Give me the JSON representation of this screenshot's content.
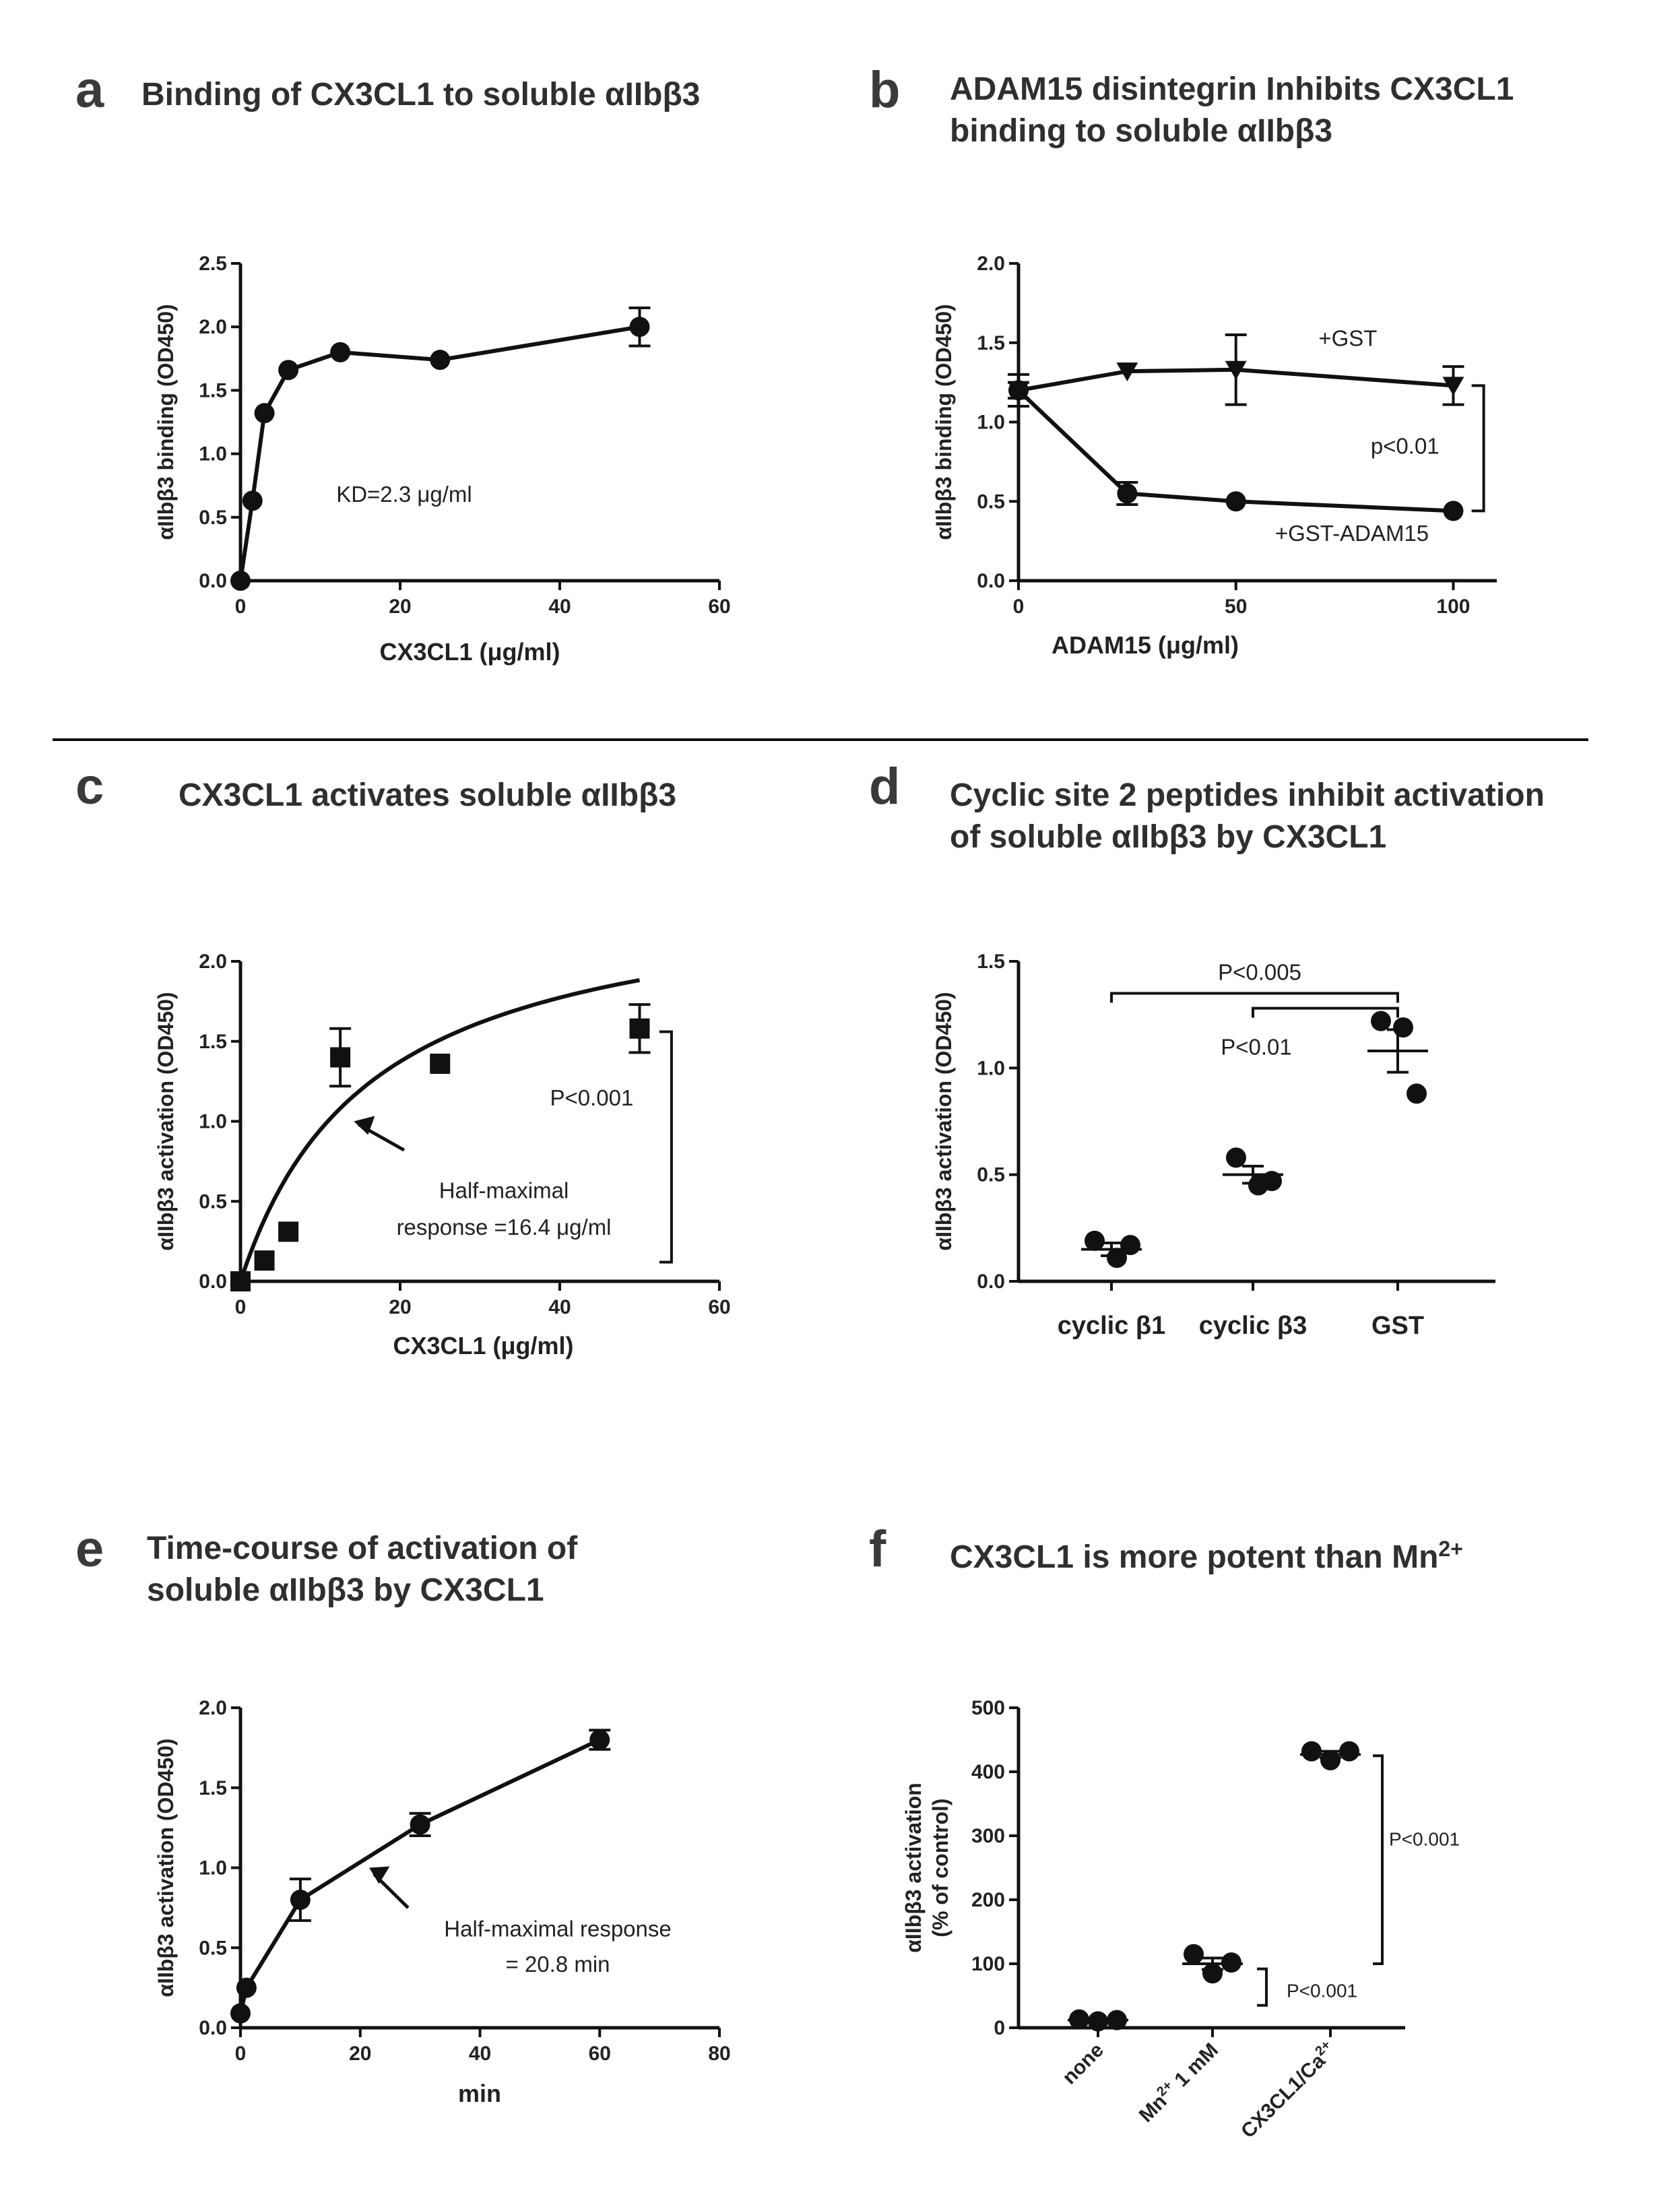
{
  "panels": {
    "a": {
      "letter": "a",
      "title": [
        "Binding of CX3CL1 to soluble αIIbβ3"
      ]
    },
    "b": {
      "letter": "b",
      "title": [
        "ADAM15 disintegrin Inhibits CX3CL1",
        "binding to soluble αIIbβ3"
      ]
    },
    "c": {
      "letter": "c",
      "title": [
        "CX3CL1 activates soluble αIIbβ3"
      ]
    },
    "d": {
      "letter": "d",
      "title": [
        "Cyclic site 2 peptides inhibit activation",
        "of soluble αIIbβ3 by CX3CL1"
      ]
    },
    "e": {
      "letter": "e",
      "title": [
        "Time-course of activation of",
        "soluble αIIbβ3  by CX3CL1"
      ]
    },
    "f": {
      "letter": "f",
      "title": [
        "CX3CL1 is more potent than Mn"
      ],
      "title_sup": "2+"
    }
  },
  "chart_data": [
    {
      "id": "a",
      "type": "line",
      "xlabel": "CX3CL1  (μg/ml)",
      "ylabel": "αIIbβ3 binding (OD450)",
      "xlim": [
        0,
        60
      ],
      "ylim": [
        0,
        2.5
      ],
      "xticks": [
        0,
        20,
        40,
        60
      ],
      "yticks": [
        "0.0",
        "0.5",
        "1.0",
        "1.5",
        "2.0",
        "2.5"
      ],
      "series": [
        {
          "name": "CX3CL1",
          "marker": "circle",
          "x": [
            0,
            1.5,
            3,
            6,
            12.5,
            25,
            50
          ],
          "y": [
            0,
            0.63,
            1.32,
            1.66,
            1.8,
            1.74,
            2.0
          ],
          "err": [
            0,
            0,
            0,
            0,
            0,
            0,
            0.15
          ]
        }
      ],
      "annotations": [
        {
          "text": "KD=2.3 μg/ml",
          "x": 12,
          "y": 0.62
        }
      ]
    },
    {
      "id": "b",
      "type": "line",
      "xlabel": "ADAM15 (μg/ml)",
      "ylabel": "αIIbβ3 binding (OD450)",
      "xlim": [
        0,
        110
      ],
      "ylim": [
        0,
        2.0
      ],
      "xticks": [
        0,
        50,
        100
      ],
      "yticks": [
        "0.0",
        "0.5",
        "1.0",
        "1.5",
        "2.0"
      ],
      "series": [
        {
          "name": "+GST",
          "marker": "triangle-down",
          "x": [
            0,
            25,
            50,
            100
          ],
          "y": [
            1.2,
            1.32,
            1.33,
            1.23
          ],
          "err": [
            0.1,
            0,
            0.22,
            0.12
          ]
        },
        {
          "name": "+GST-ADAM15",
          "marker": "circle",
          "x": [
            0,
            25,
            50,
            100
          ],
          "y": [
            1.2,
            0.55,
            0.5,
            0.44
          ],
          "err": [
            0.05,
            0.07,
            0,
            0
          ]
        }
      ],
      "annotations": [
        {
          "text": "+GST",
          "x": 69,
          "y": 1.48
        },
        {
          "text": "p<0.01",
          "x": 81,
          "y": 0.8
        },
        {
          "text": "+GST-ADAM15",
          "x": 59,
          "y": 0.25
        }
      ]
    },
    {
      "id": "c",
      "type": "scatter",
      "xlabel": "CX3CL1 (μg/ml)",
      "ylabel": "αIIbβ3 activation (OD450)",
      "xlim": [
        0,
        60
      ],
      "ylim": [
        0,
        2.0
      ],
      "xticks": [
        0,
        20,
        40,
        60
      ],
      "yticks": [
        "0.0",
        "0.5",
        "1.0",
        "1.5",
        "2.0"
      ],
      "series": [
        {
          "name": "CX3CL1",
          "marker": "square",
          "x": [
            0,
            3,
            6,
            12.5,
            25,
            50
          ],
          "y": [
            0,
            0.13,
            0.31,
            1.4,
            1.36,
            1.58
          ],
          "err": [
            0,
            0,
            0,
            0.18,
            0,
            0.15
          ]
        }
      ],
      "fit": {
        "type": "hyperbola",
        "ymax": 2.5,
        "ec50": 16.4
      },
      "annotations": [
        {
          "text": "P<0.001",
          "x": 44,
          "y": 1.1
        },
        {
          "text": "Half-maximal",
          "x": 33,
          "y": 0.52
        },
        {
          "text": "response =16.4 μg/ml",
          "x": 33,
          "y": 0.29
        }
      ]
    },
    {
      "id": "d",
      "type": "scatter",
      "xlabel": "",
      "ylabel": "αIIbβ3 activation (OD450)",
      "categories": [
        "cyclic β1",
        "cyclic β3",
        "GST"
      ],
      "ylim": [
        0,
        1.5
      ],
      "yticks": [
        "0.0",
        "0.5",
        "1.0",
        "1.5"
      ],
      "series": [
        {
          "name": "cyclic β1",
          "values": [
            0.19,
            0.11,
            0.17
          ],
          "mean": 0.15,
          "sem": 0.03
        },
        {
          "name": "cyclic β3",
          "values": [
            0.58,
            0.45,
            0.47
          ],
          "mean": 0.5,
          "sem": 0.04
        },
        {
          "name": "GST",
          "values": [
            1.22,
            1.19,
            0.88
          ],
          "mean": 1.08,
          "sem": 0.1
        }
      ],
      "annotations": [
        {
          "text": "P<0.005",
          "between": [
            "cyclic β1",
            "GST"
          ]
        },
        {
          "text": "P<0.01",
          "between": [
            "cyclic β3",
            "GST"
          ]
        }
      ]
    },
    {
      "id": "e",
      "type": "line",
      "xlabel": "min",
      "ylabel": "αIIbβ3 activation (OD450)",
      "xlim": [
        0,
        80
      ],
      "ylim": [
        0,
        2.0
      ],
      "xticks": [
        0,
        20,
        40,
        60,
        80
      ],
      "yticks": [
        "0.0",
        "0.5",
        "1.0",
        "1.5",
        "2.0"
      ],
      "series": [
        {
          "name": "CX3CL1",
          "marker": "circle",
          "x": [
            0,
            1,
            10,
            30,
            60
          ],
          "y": [
            0.09,
            0.25,
            0.8,
            1.27,
            1.8
          ],
          "err": [
            0,
            0,
            0.13,
            0.07,
            0.06
          ]
        }
      ],
      "annotations": [
        {
          "text": "Half-maximal response",
          "x": 53,
          "y": 0.57
        },
        {
          "text": "= 20.8 min",
          "x": 53,
          "y": 0.35
        }
      ]
    },
    {
      "id": "f",
      "type": "scatter",
      "xlabel": "",
      "ylabel": [
        "αIIbβ3 activation",
        "(% of control)"
      ],
      "categories": [
        "none",
        "Mn",
        "CX3CL1/Ca"
      ],
      "category_sups": [
        "",
        "2+",
        "2+"
      ],
      "category_suffix": [
        "",
        " 1 mM",
        ""
      ],
      "ylim": [
        0,
        500
      ],
      "yticks": [
        "0",
        "100",
        "200",
        "300",
        "400",
        "500"
      ],
      "series": [
        {
          "name": "none",
          "values": [
            13,
            10,
            12
          ],
          "mean": 12,
          "sem": 1
        },
        {
          "name": "Mn2+ 1 mM",
          "values": [
            115,
            85,
            102
          ],
          "mean": 100,
          "sem": 9
        },
        {
          "name": "CX3CL1/Ca2+",
          "values": [
            432,
            418,
            432
          ],
          "mean": 427,
          "sem": 5
        }
      ],
      "annotations": [
        {
          "text": "P<0.001",
          "between": [
            "Mn2+ 1 mM",
            "CX3CL1/Ca2+"
          ]
        },
        {
          "text": "P<0.001",
          "between": [
            "none",
            "Mn2+ 1 mM"
          ]
        }
      ]
    }
  ]
}
